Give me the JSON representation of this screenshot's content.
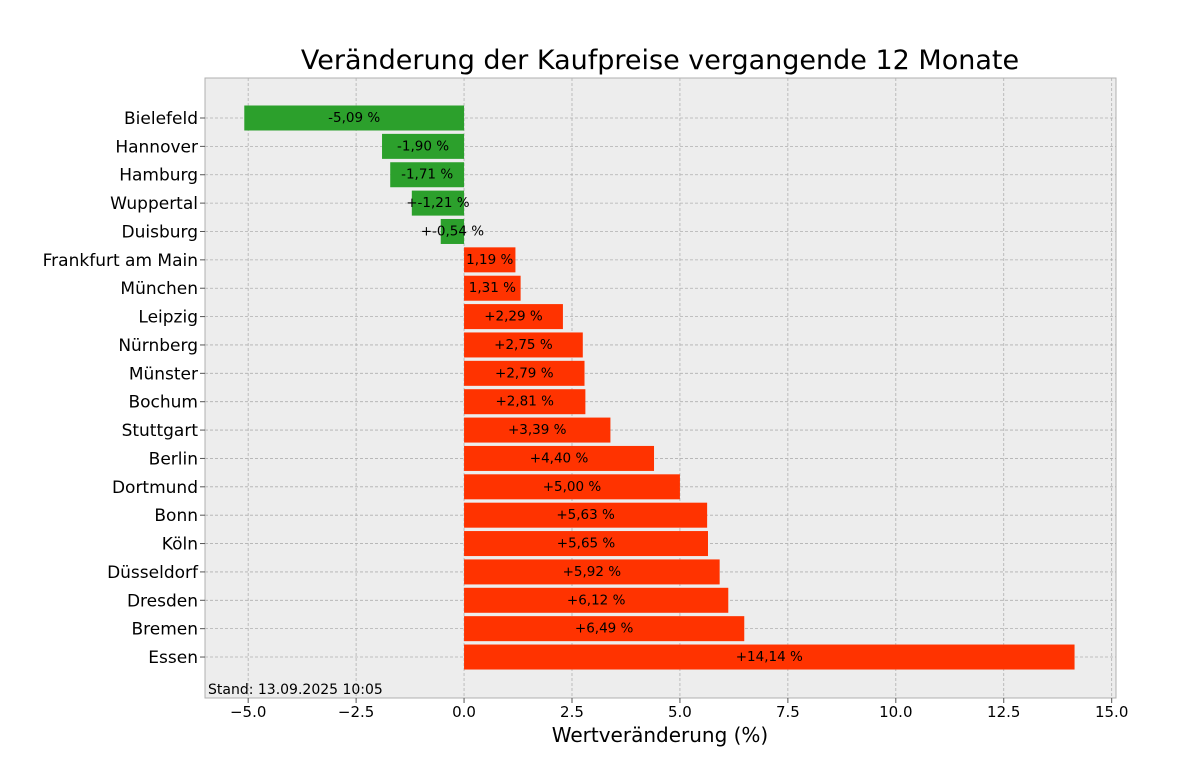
{
  "chart_data": {
    "type": "bar",
    "orientation": "horizontal",
    "title": "Veränderung der Kaufpreise vergangende 12 Monate",
    "xlabel": "Wertveränderung (%)",
    "ylabel": "",
    "xlim": [
      -6.0,
      15.1
    ],
    "xticks": [
      -5.0,
      -2.5,
      0.0,
      2.5,
      5.0,
      7.5,
      10.0,
      12.5,
      15.0
    ],
    "xtick_labels": [
      "−5.0",
      "−2.5",
      "0.0",
      "2.5",
      "5.0",
      "7.5",
      "10.0",
      "12.5",
      "15.0"
    ],
    "grid": true,
    "categories": [
      "Bielefeld",
      "Hannover",
      "Hamburg",
      "Wuppertal",
      "Duisburg",
      "Frankfurt am Main",
      "München",
      "Leipzig",
      "Nürnberg",
      "Münster",
      "Bochum",
      "Stuttgart",
      "Berlin",
      "Dortmund",
      "Bonn",
      "Köln",
      "Düsseldorf",
      "Dresden",
      "Bremen",
      "Essen"
    ],
    "values": [
      -5.09,
      -1.9,
      -1.71,
      -1.21,
      -0.54,
      1.19,
      1.31,
      2.29,
      2.75,
      2.79,
      2.81,
      3.39,
      4.4,
      5.0,
      5.63,
      5.65,
      5.92,
      6.12,
      6.49,
      14.14
    ],
    "value_labels": [
      "-5,09 %",
      "-1,90 %",
      "-1,71 %",
      "+-1,21 %",
      "+-0,54 %",
      "1,19 %",
      "1,31 %",
      "+2,29 %",
      "+2,75 %",
      "+2,79 %",
      "+2,81 %",
      "+3,39 %",
      "+4,40 %",
      "+5,00 %",
      "+5,63 %",
      "+5,65 %",
      "+5,92 %",
      "+6,12 %",
      "+6,49 %",
      "+14,14 %"
    ],
    "colors": {
      "negative": "#2ca02c",
      "positive": "#ff3300",
      "plot_background": "#ededed",
      "grid": "#b0b0b0"
    },
    "annotation": "Stand: 13.09.2025 10:05"
  }
}
